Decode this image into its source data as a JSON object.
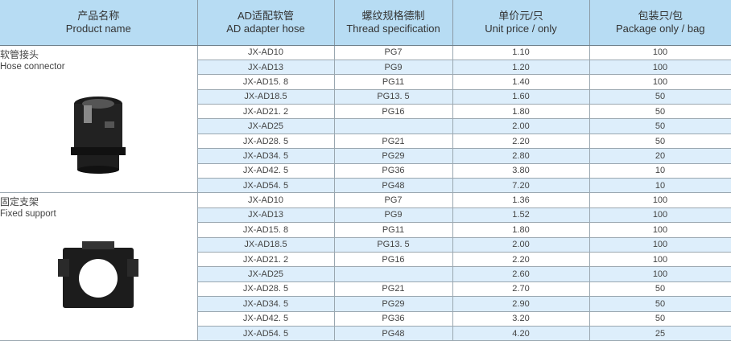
{
  "headers": [
    {
      "zh": "产品名称",
      "en": "Product name"
    },
    {
      "zh": "AD适配软管",
      "en": "AD adapter hose"
    },
    {
      "zh": "螺纹规格德制",
      "en": "Thread specification"
    },
    {
      "zh": "单价元/只",
      "en": "Unit price / only"
    },
    {
      "zh": "包装只/包",
      "en": "Package only / bag"
    }
  ],
  "groups": [
    {
      "zh": "软管接头",
      "en": "Hose connector",
      "image": "hose-connector-photo",
      "rows": [
        [
          "JX-AD10",
          "PG7",
          "1.10",
          "100"
        ],
        [
          "JX-AD13",
          "PG9",
          "1.20",
          "100"
        ],
        [
          "JX-AD15. 8",
          "PG11",
          "1.40",
          "100"
        ],
        [
          "JX-AD18.5",
          "PG13. 5",
          "1.60",
          "50"
        ],
        [
          "JX-AD21. 2",
          "PG16",
          "1.80",
          "50"
        ],
        [
          "JX-AD25",
          "",
          "2.00",
          "50"
        ],
        [
          "JX-AD28. 5",
          "PG21",
          "2.20",
          "50"
        ],
        [
          "JX-AD34. 5",
          "PG29",
          "2.80",
          "20"
        ],
        [
          "JX-AD42. 5",
          "PG36",
          "3.80",
          "10"
        ],
        [
          "JX-AD54. 5",
          "PG48",
          "7.20",
          "10"
        ]
      ]
    },
    {
      "zh": "固定支架",
      "en": "Fixed support",
      "image": "fixed-support-photo",
      "rows": [
        [
          "JX-AD10",
          "PG7",
          "1.36",
          "100"
        ],
        [
          "JX-AD13",
          "PG9",
          "1.52",
          "100"
        ],
        [
          "JX-AD15. 8",
          "PG11",
          "1.80",
          "100"
        ],
        [
          "JX-AD18.5",
          "PG13. 5",
          "2.00",
          "100"
        ],
        [
          "JX-AD21. 2",
          "PG16",
          "2.20",
          "100"
        ],
        [
          "JX-AD25",
          "",
          "2.60",
          "100"
        ],
        [
          "JX-AD28. 5",
          "PG21",
          "2.70",
          "50"
        ],
        [
          "JX-AD34. 5",
          "PG29",
          "2.90",
          "50"
        ],
        [
          "JX-AD42. 5",
          "PG36",
          "3.20",
          "50"
        ],
        [
          "JX-AD54. 5",
          "PG48",
          "4.20",
          "25"
        ]
      ]
    }
  ]
}
